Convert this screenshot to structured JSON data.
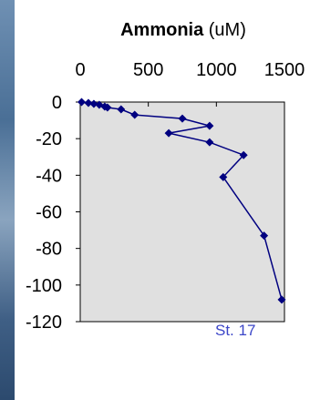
{
  "chart_data": {
    "type": "line",
    "title_bold": "Ammonia",
    "title_unit": " (uM)",
    "annotation": "St. 17",
    "x_axis": {
      "position": "top",
      "range": [
        0,
        1500
      ],
      "ticks": [
        0,
        500,
        1000,
        1500
      ]
    },
    "y_axis": {
      "range": [
        -120,
        0
      ],
      "ticks": [
        0,
        -20,
        -40,
        -60,
        -80,
        -100,
        -120
      ]
    },
    "plot_background": "#e0e0e0",
    "grid": false,
    "series": [
      {
        "color": "#000080",
        "marker": "diamond",
        "points": [
          [
            10,
            0
          ],
          [
            60,
            -0.5
          ],
          [
            100,
            -1
          ],
          [
            140,
            -1.5
          ],
          [
            180,
            -2.5
          ],
          [
            200,
            -3
          ],
          [
            300,
            -4
          ],
          [
            400,
            -7
          ],
          [
            750,
            -9
          ],
          [
            950,
            -13
          ],
          [
            650,
            -17
          ],
          [
            950,
            -22
          ],
          [
            1200,
            -29
          ],
          [
            1050,
            -41
          ],
          [
            1350,
            -73
          ],
          [
            1480,
            -108
          ]
        ]
      }
    ]
  }
}
